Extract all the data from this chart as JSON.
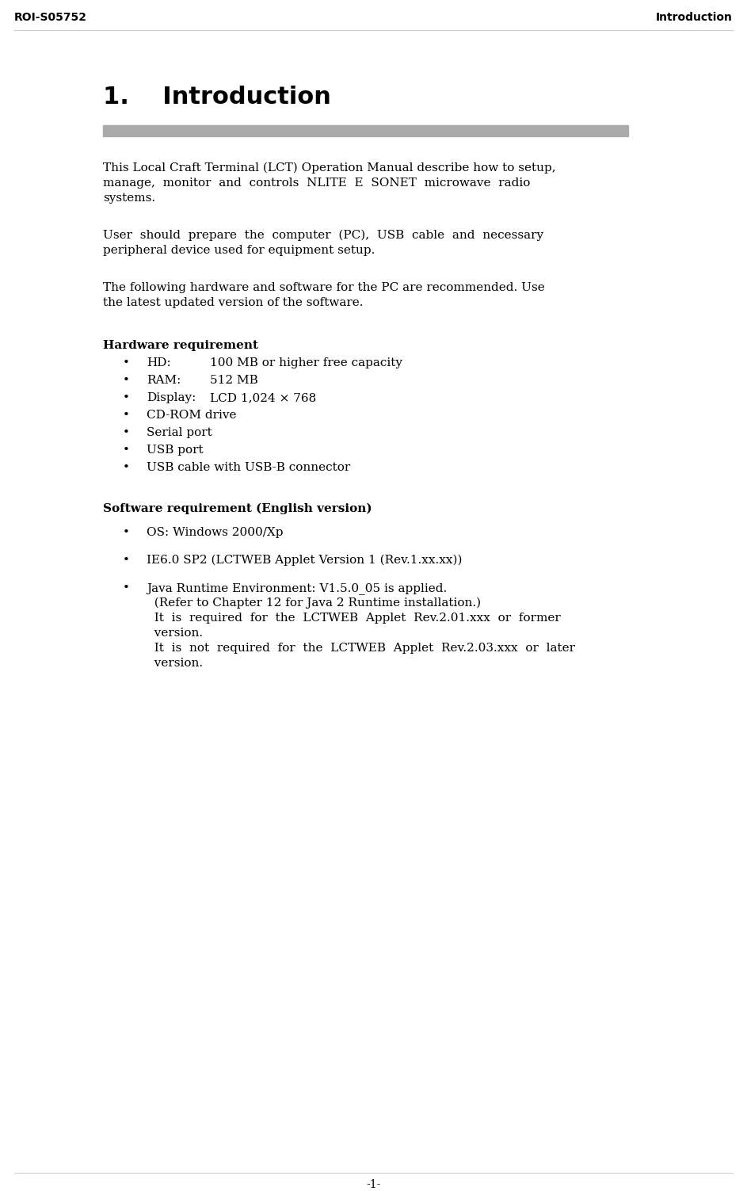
{
  "header_left": "ROI-S05752",
  "header_right": "Introduction",
  "chapter_title": "1.    Introduction",
  "rule_color": "#aaaaaa",
  "para1_lines": [
    "This Local Craft Terminal (LCT) Operation Manual describe how to setup,",
    "manage,  monitor  and  controls  NLITE  E  SONET  microwave  radio",
    "systems."
  ],
  "para2_lines": [
    "User  should  prepare  the  computer  (PC),  USB  cable  and  necessary",
    "peripheral device used for equipment setup."
  ],
  "para3_lines": [
    "The following hardware and software for the PC are recommended. Use",
    "the latest updated version of the software."
  ],
  "hw_heading": "Hardware requirement",
  "hw_items": [
    [
      "HD:",
      "100 MB or higher free capacity"
    ],
    [
      "RAM:",
      "512 MB"
    ],
    [
      "Display:",
      "LCD 1,024 × 768"
    ],
    [
      "CD-ROM drive",
      ""
    ],
    [
      "Serial port",
      ""
    ],
    [
      "USB port",
      ""
    ],
    [
      "USB cable with USB-B connector",
      ""
    ]
  ],
  "sw_heading": "Software requirement (English version)",
  "sw_item1": "OS: Windows 2000/Xp",
  "sw_item2": "IE6.0 SP2 (LCTWEB Applet Version 1 (Rev.1.xx.xx))",
  "sw_item3_lines": [
    "Java Runtime Environment: V1.5.0_05 is applied.",
    "  (Refer to Chapter 12 for Java 2 Runtime installation.)",
    "  It  is  required  for  the  LCTWEB  Applet  Rev.2.01.xxx  or  former",
    "  version.",
    "  It  is  not  required  for  the  LCTWEB  Applet  Rev.2.03.xxx  or  later",
    "  version."
  ],
  "footer_text": "-1-",
  "bg_color": "#ffffff",
  "text_color": "#000000",
  "header_font_size": 10,
  "title_font_size": 22,
  "body_font_size": 11,
  "heading_font_size": 11,
  "footer_font_size": 10
}
